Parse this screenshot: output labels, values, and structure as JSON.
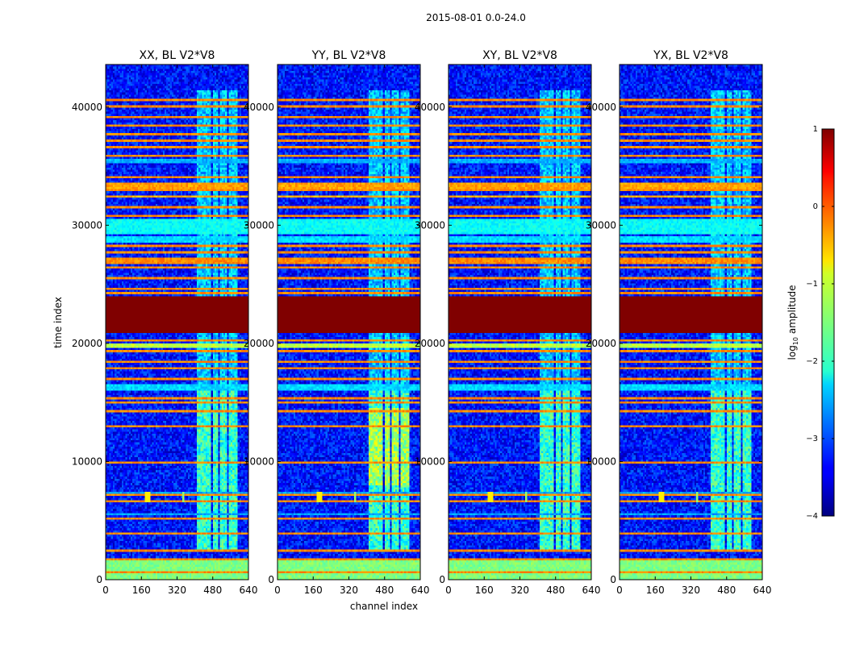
{
  "chart_data": {
    "type": "heatmap",
    "suptitle": "2015-08-01 0.0-24.0",
    "xlabel": "channel index",
    "ylabel": "time index",
    "xlim": [
      0,
      640
    ],
    "ylim": [
      0,
      43600
    ],
    "xticks": [
      0,
      160,
      320,
      480,
      640
    ],
    "yticks": [
      0,
      10000,
      20000,
      30000,
      40000
    ],
    "panels": [
      {
        "title": "XX, BL V2*V8"
      },
      {
        "title": "YY, BL V2*V8"
      },
      {
        "title": "XY, BL V2*V8"
      },
      {
        "title": "YX, BL V2*V8"
      }
    ],
    "colorbar": {
      "label_prefix": "log",
      "label_sub": "10",
      "label_suffix": " amplitude",
      "range": [
        -4,
        1
      ],
      "ticks": [
        1,
        0,
        -1,
        -2,
        -3,
        -4
      ],
      "tick_labels": [
        "1",
        "0",
        "−1",
        "−2",
        "−3",
        "−4"
      ],
      "colormap": "jet"
    },
    "features": {
      "background_log_amplitude": -3.3,
      "rfi_band_channels": [
        [
          410,
          460
        ],
        [
          460,
          475
        ],
        [
          480,
          505
        ],
        [
          510,
          545
        ],
        [
          550,
          590
        ]
      ],
      "bands": [
        {
          "t0": 20800,
          "t1": 23900,
          "level": 1.0
        },
        {
          "t0": 0,
          "t1": 1500,
          "level": -1.5
        },
        {
          "t0": 19600,
          "t1": 19900,
          "level": -1.2
        },
        {
          "t0": 29200,
          "t1": 30500,
          "level": -2.1
        },
        {
          "t0": 28500,
          "t1": 29100,
          "level": -2.3
        },
        {
          "t0": 26800,
          "t1": 27200,
          "level": -0.3
        },
        {
          "t0": 33200,
          "t1": 33700,
          "level": -0.4
        },
        {
          "t0": 32300,
          "t1": 32600,
          "level": -0.5
        },
        {
          "t0": 35300,
          "t1": 35700,
          "level": -2.5
        },
        {
          "t0": 16000,
          "t1": 16500,
          "level": -2.3
        },
        {
          "t0": 5300,
          "t1": 5600,
          "level": -2.6
        },
        {
          "t0": 7000,
          "t1": 7400,
          "level": -2.6
        }
      ],
      "lines_t": [
        600,
        1700,
        2400,
        3800,
        5100,
        6600,
        7100,
        9800,
        13000,
        14300,
        14900,
        15400,
        17000,
        17800,
        18500,
        19300,
        20300,
        24200,
        24700,
        25500,
        26500,
        27800,
        28200,
        30800,
        31500,
        33000,
        34100,
        35900,
        36600,
        37200,
        37800,
        38500,
        39300,
        40100,
        40600
      ],
      "source_channel": 190,
      "source_time": 6900
    }
  }
}
